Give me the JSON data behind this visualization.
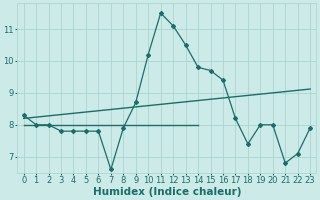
{
  "xlabel": "Humidex (Indice chaleur)",
  "background_color": "#cceae7",
  "grid_color": "#aad4d0",
  "line_color": "#1a6e6a",
  "x_values": [
    0,
    1,
    2,
    3,
    4,
    5,
    6,
    7,
    8,
    9,
    10,
    11,
    12,
    13,
    14,
    15,
    16,
    17,
    18,
    19,
    20,
    21,
    22,
    23
  ],
  "y_humidex": [
    8.3,
    8.0,
    8.0,
    7.8,
    7.8,
    7.8,
    7.8,
    6.6,
    7.9,
    8.7,
    10.2,
    11.5,
    11.1,
    10.5,
    9.8,
    9.7,
    9.4,
    8.2,
    7.4,
    8.0,
    8.0,
    6.8,
    7.1,
    7.9
  ],
  "y_trend_diagonal": [
    8.2,
    8.24,
    8.28,
    8.32,
    8.36,
    8.4,
    8.44,
    8.48,
    8.52,
    8.56,
    8.6,
    8.64,
    8.68,
    8.72,
    8.76,
    8.8,
    8.84,
    8.88,
    8.92,
    8.96,
    9.0,
    9.04,
    9.08,
    9.12
  ],
  "flat_line_x": [
    0,
    14
  ],
  "flat_line_y": [
    8.0,
    8.0
  ],
  "ylim": [
    6.5,
    11.8
  ],
  "xlim": [
    -0.5,
    23.5
  ],
  "yticks": [
    7,
    8,
    9,
    10,
    11
  ],
  "xticks": [
    0,
    1,
    2,
    3,
    4,
    5,
    6,
    7,
    8,
    9,
    10,
    11,
    12,
    13,
    14,
    15,
    16,
    17,
    18,
    19,
    20,
    21,
    22,
    23
  ],
  "tick_fontsize": 6,
  "xlabel_fontsize": 7.5
}
